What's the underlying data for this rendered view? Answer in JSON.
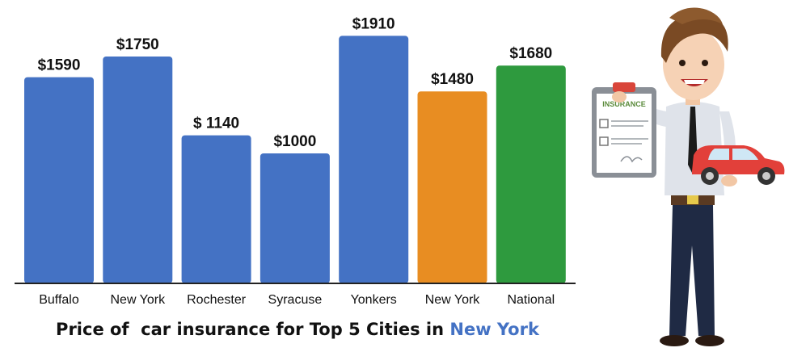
{
  "colors": {
    "city_bar": "#4472c4",
    "state_bar": "#e88d22",
    "national_bar": "#2e9a3e",
    "axis": "#222222",
    "caption_highlight": "#4472c4"
  },
  "caption": {
    "prefix": "Price of  car insurance for Top 5 Cities in ",
    "highlight": "New York"
  },
  "illustration": {
    "clipboard_text": "INSURANCE"
  },
  "chart_data": {
    "type": "bar",
    "title": "Price of  car insurance for Top 5 Cities in New York",
    "xlabel": "",
    "ylabel": "",
    "ylim": [
      0,
      2100
    ],
    "grid": false,
    "categories": [
      "Buffalo",
      "New York",
      "Rochester",
      "Syracuse",
      "Yonkers",
      "New York",
      "National"
    ],
    "values": [
      1590,
      1750,
      1140,
      1000,
      1910,
      1480,
      1680
    ],
    "value_labels": [
      "$1590",
      "$1750",
      "$ 1140",
      "$1000",
      "$1910",
      "$1480",
      "$1680"
    ],
    "bar_colors": [
      "city_bar",
      "city_bar",
      "city_bar",
      "city_bar",
      "city_bar",
      "state_bar",
      "national_bar"
    ]
  }
}
